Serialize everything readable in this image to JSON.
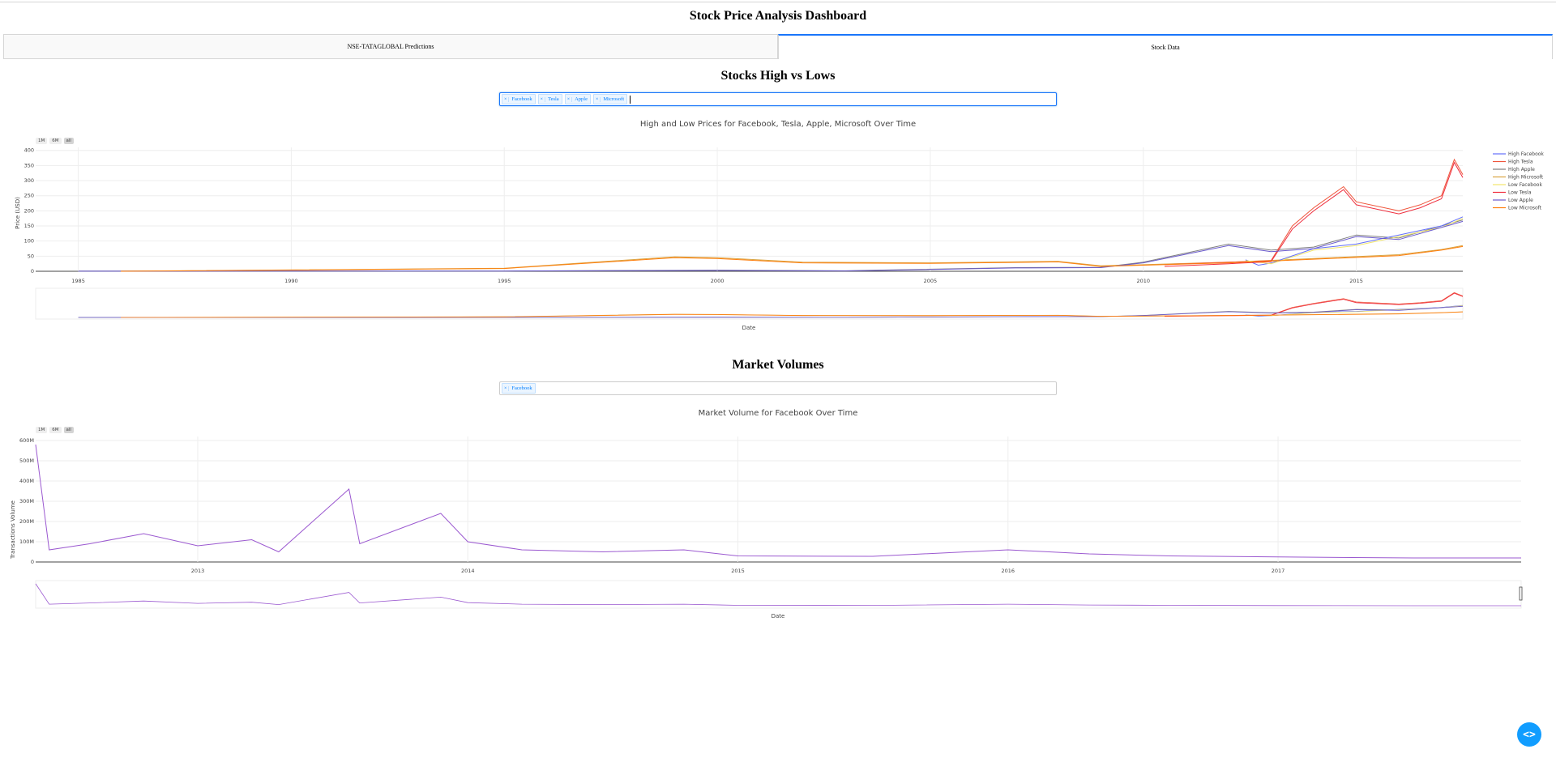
{
  "page": {
    "title": "Stock Price Analysis Dashboard"
  },
  "tabs": [
    {
      "label": "NSE-TATAGLOBAL Predictions",
      "active": false
    },
    {
      "label": "Stock Data",
      "active": true
    }
  ],
  "highlow": {
    "section_title": "Stocks High vs Lows",
    "selected": [
      "Facebook",
      "Tesla",
      "Apple",
      "Microsoft"
    ],
    "rangeselector": [
      "1M",
      "6M",
      "all"
    ],
    "chart_title": "High and Low Prices for Facebook, Tesla, Apple, Microsoft Over Time",
    "ylabel": "Price (USD)",
    "xlabel": "Date",
    "yticks": [
      "0",
      "50",
      "100",
      "150",
      "200",
      "250",
      "300",
      "350",
      "400"
    ],
    "xticks": [
      "1985",
      "1990",
      "1995",
      "2000",
      "2005",
      "2010",
      "2015"
    ],
    "legend": [
      "High Facebook",
      "High Tesla",
      "High Apple",
      "High Microsoft",
      "Low Facebook",
      "Low Tesla",
      "Low Apple",
      "Low Microsoft"
    ]
  },
  "volume": {
    "section_title": "Market Volumes",
    "selected": [
      "Facebook"
    ],
    "rangeselector": [
      "1M",
      "6M",
      "all"
    ],
    "chart_title": "Market Volume for Facebook Over Time",
    "ylabel": "Transactions Volume",
    "xlabel": "Date",
    "yticks": [
      "0",
      "100M",
      "200M",
      "300M",
      "400M",
      "500M",
      "600M"
    ],
    "xticks": [
      "2013",
      "2014",
      "2015",
      "2016",
      "2017"
    ]
  },
  "colors": {
    "High Facebook": "#636efa",
    "High Tesla": "#ef553b",
    "High Apple": "#7f7f7f",
    "High Microsoft": "#d9a441",
    "Low Facebook": "#f2e66b",
    "Low Tesla": "#ef2d3d",
    "Low Apple": "#6a5acd",
    "Low Microsoft": "#ff7f0e",
    "volume": "#9b59d0"
  },
  "chart_data": [
    {
      "type": "line",
      "title": "High and Low Prices for Facebook, Tesla, Apple, Microsoft Over Time",
      "xlabel": "Date",
      "ylabel": "Price (USD)",
      "xlim": [
        1984,
        2017.5
      ],
      "ylim": [
        0,
        410
      ],
      "legend_position": "right",
      "series": [
        {
          "name": "High Apple",
          "x": [
            1985,
            1995,
            2000,
            2003,
            2007,
            2009,
            2010,
            2012,
            2013,
            2014,
            2015,
            2016,
            2017,
            2017.5
          ],
          "values": [
            0.5,
            0.8,
            3.5,
            1.5,
            12,
            13,
            30,
            90,
            70,
            80,
            120,
            110,
            150,
            170
          ]
        },
        {
          "name": "High Microsoft",
          "x": [
            1986,
            1995,
            1999,
            2000,
            2002,
            2005,
            2008,
            2009,
            2012,
            2014,
            2016,
            2017,
            2017.5
          ],
          "values": [
            0.2,
            10,
            48,
            45,
            30,
            28,
            33,
            18,
            30,
            42,
            55,
            72,
            85
          ]
        },
        {
          "name": "High Facebook",
          "x": [
            2012.4,
            2012.7,
            2013,
            2014,
            2015,
            2016,
            2017,
            2017.5
          ],
          "values": [
            38,
            20,
            27,
            75,
            90,
            120,
            150,
            180
          ]
        },
        {
          "name": "High Tesla",
          "x": [
            2010.5,
            2012,
            2013,
            2013.5,
            2014,
            2014.7,
            2015,
            2016,
            2016.5,
            2017,
            2017.3,
            2017.5
          ],
          "values": [
            22,
            30,
            35,
            150,
            210,
            280,
            230,
            200,
            220,
            250,
            370,
            320
          ]
        },
        {
          "name": "Low Facebook",
          "x": [
            2012.4,
            2013,
            2014,
            2015,
            2016,
            2017,
            2017.5
          ],
          "values": [
            35,
            25,
            70,
            85,
            115,
            145,
            175
          ]
        },
        {
          "name": "Low Tesla",
          "x": [
            2010.5,
            2012,
            2013,
            2013.5,
            2014,
            2014.7,
            2015,
            2016,
            2016.5,
            2017,
            2017.3,
            2017.5
          ],
          "values": [
            16,
            25,
            32,
            140,
            200,
            270,
            220,
            190,
            210,
            240,
            360,
            310
          ]
        },
        {
          "name": "Low Apple",
          "x": [
            1985,
            1995,
            2000,
            2003,
            2007,
            2009,
            2010,
            2012,
            2013,
            2014,
            2015,
            2016,
            2017,
            2017.5
          ],
          "values": [
            0.4,
            0.7,
            3,
            1.2,
            11,
            12,
            28,
            85,
            65,
            75,
            115,
            105,
            145,
            165
          ]
        },
        {
          "name": "Low Microsoft",
          "x": [
            1986,
            1995,
            1999,
            2000,
            2002,
            2005,
            2008,
            2009,
            2012,
            2014,
            2016,
            2017,
            2017.5
          ],
          "values": [
            0.1,
            9,
            45,
            42,
            28,
            26,
            31,
            16,
            28,
            40,
            52,
            70,
            82
          ]
        }
      ]
    },
    {
      "type": "line",
      "title": "Market Volume for Facebook Over Time",
      "xlabel": "Date",
      "ylabel": "Transactions Volume",
      "xlim": [
        2012.4,
        2017.9
      ],
      "ylim": [
        0,
        620000000
      ],
      "series": [
        {
          "name": "Facebook",
          "x": [
            2012.4,
            2012.45,
            2012.6,
            2012.8,
            2013.0,
            2013.2,
            2013.3,
            2013.56,
            2013.6,
            2013.9,
            2014.0,
            2014.2,
            2014.5,
            2014.8,
            2015.0,
            2015.5,
            2016.0,
            2016.3,
            2016.6,
            2017.0,
            2017.5,
            2017.9
          ],
          "values": [
            580000000,
            60000000,
            90000000,
            140000000,
            80000000,
            110000000,
            50000000,
            360000000,
            90000000,
            240000000,
            100000000,
            60000000,
            50000000,
            60000000,
            30000000,
            28000000,
            60000000,
            40000000,
            30000000,
            25000000,
            20000000,
            20000000
          ]
        }
      ]
    }
  ]
}
